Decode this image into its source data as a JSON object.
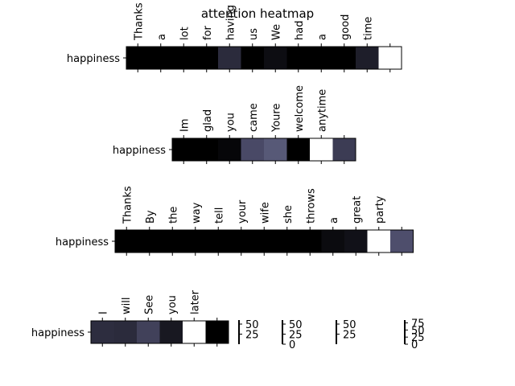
{
  "chart_data": {
    "type": "heatmap",
    "title": "attention heatmap",
    "panels": [
      {
        "row_label": "happiness",
        "tokens": [
          "Thanks",
          "a",
          "lot",
          "for",
          "having",
          "us",
          "We",
          "had",
          "a",
          "good",
          "time",
          ""
        ],
        "values": [
          0,
          0,
          0,
          0,
          20,
          0,
          6,
          0,
          0,
          0,
          14,
          100
        ],
        "colorbar_ticks": [
          25,
          50
        ]
      },
      {
        "row_label": "happiness",
        "tokens": [
          "Im",
          "glad",
          "you",
          "came",
          "Youre",
          "welcome",
          "anytime",
          ""
        ],
        "values": [
          0,
          0,
          3,
          34,
          40,
          0,
          100,
          28
        ],
        "colorbar_ticks": [
          0,
          25,
          50
        ]
      },
      {
        "row_label": "happiness",
        "tokens": [
          "Thanks",
          "By",
          "the",
          "way",
          "tell",
          "your",
          "wife",
          "she",
          "throws",
          "a",
          "great",
          "party",
          ""
        ],
        "values": [
          0,
          0,
          0,
          0,
          0,
          0,
          0,
          0,
          0,
          5,
          8,
          100,
          36
        ],
        "colorbar_ticks": [
          25,
          50
        ]
      },
      {
        "row_label": "happiness",
        "tokens": [
          "I",
          "will",
          "See",
          "you",
          "later",
          ""
        ],
        "values": [
          21,
          20,
          30,
          11,
          100,
          0
        ],
        "colorbar_ticks": [
          0,
          25,
          50,
          75
        ]
      }
    ],
    "colormap": "bone (black to white)"
  }
}
